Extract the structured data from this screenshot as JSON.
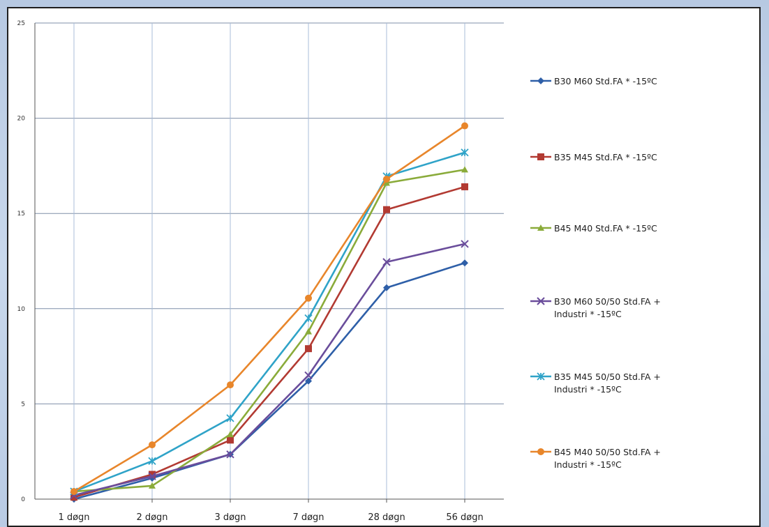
{
  "chart_data": {
    "type": "line",
    "categories": [
      "1 døgn",
      "2 døgn",
      "3 døgn",
      "7 døgn",
      "28 døgn",
      "56 døgn"
    ],
    "ylim": [
      0,
      25
    ],
    "yticks": [
      0,
      5,
      10,
      15,
      20,
      25
    ],
    "grid": true,
    "legend_position": "right",
    "series": [
      {
        "name": "B30 M60 Std.FA * -15ºC",
        "color": "#2e5fa8",
        "marker": "diamond",
        "values": [
          0.0,
          1.1,
          2.35,
          6.2,
          11.1,
          12.4
        ]
      },
      {
        "name": "B35 M45 Std.FA * -15ºC",
        "color": "#b23a32",
        "marker": "square",
        "values": [
          0.1,
          1.3,
          3.1,
          7.9,
          15.2,
          16.4
        ]
      },
      {
        "name": "B45 M40 Std.FA * -15ºC",
        "color": "#8aab3a",
        "marker": "triangle",
        "values": [
          0.4,
          0.7,
          3.4,
          8.8,
          16.6,
          17.3
        ]
      },
      {
        "name": "B30 M60 50/50 Std.FA + Industri * -15ºC",
        "color": "#6a4d9b",
        "marker": "x",
        "values": [
          0.2,
          1.2,
          2.35,
          6.5,
          12.45,
          13.4
        ]
      },
      {
        "name": "B35 M45 50/50 Std.FA + Industri * -15ºC",
        "color": "#2fa3c8",
        "marker": "star",
        "values": [
          0.4,
          2.0,
          4.25,
          9.5,
          16.95,
          18.2
        ]
      },
      {
        "name": "B45 M40 50/50 Std.FA + Industri * -15ºC",
        "color": "#e8862b",
        "marker": "circle",
        "values": [
          0.4,
          2.85,
          6.0,
          10.55,
          16.8,
          19.6
        ]
      }
    ],
    "legend_labels": [
      "B30 M60 Std.FA * -15ºC",
      "B35 M45 Std.FA * -15ºC",
      "B45 M40 Std.FA * -15ºC",
      "B30 M60 50/50 Std.FA +\nIndustri * -15ºC",
      "B35 M45 50/50 Std.FA +\nIndustri * -15ºC",
      "B45 M40 50/50 Std.FA +\nIndustri * -15ºC"
    ]
  }
}
